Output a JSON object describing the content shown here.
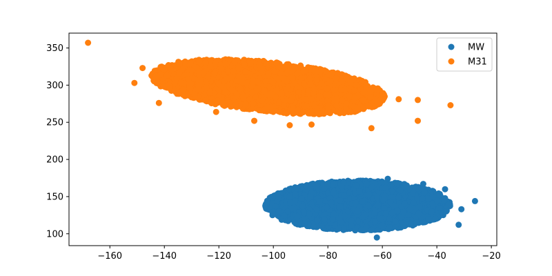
{
  "chart_data": {
    "type": "scatter",
    "xlim": [
      -175,
      -18
    ],
    "ylim": [
      84,
      370
    ],
    "xticks": [
      -160,
      -140,
      -120,
      -100,
      -80,
      -60,
      -40,
      -20
    ],
    "yticks": [
      100,
      150,
      200,
      250,
      300,
      350
    ],
    "grid": false,
    "legend": "top-right",
    "series": [
      {
        "name": "MW",
        "color": "#1f77b4",
        "cluster": {
          "center": [
            -69,
            138
          ],
          "x_range": [
            -99,
            -31
          ],
          "y_range": [
            108,
            175
          ]
        },
        "outliers": [
          [
            -26,
            144
          ],
          [
            -62,
            95
          ],
          [
            -32,
            112
          ],
          [
            -31,
            133
          ],
          [
            -37,
            160
          ],
          [
            -58,
            174
          ],
          [
            -98,
            130
          ],
          [
            -45,
            167
          ]
        ]
      },
      {
        "name": "M31",
        "color": "#ff7f0e",
        "cluster": {
          "center": [
            -102,
            298
          ],
          "x_range": [
            -143,
            -57
          ],
          "y_range": [
            262,
            330
          ]
        },
        "outliers": [
          [
            -168,
            357
          ],
          [
            -151,
            303
          ],
          [
            -148,
            323
          ],
          [
            -142,
            276
          ],
          [
            -107,
            252
          ],
          [
            -94,
            246
          ],
          [
            -86,
            247
          ],
          [
            -64,
            242
          ],
          [
            -47,
            280
          ],
          [
            -47,
            252
          ],
          [
            -35,
            273
          ],
          [
            -54,
            281
          ],
          [
            -121,
            264
          ]
        ]
      }
    ]
  }
}
